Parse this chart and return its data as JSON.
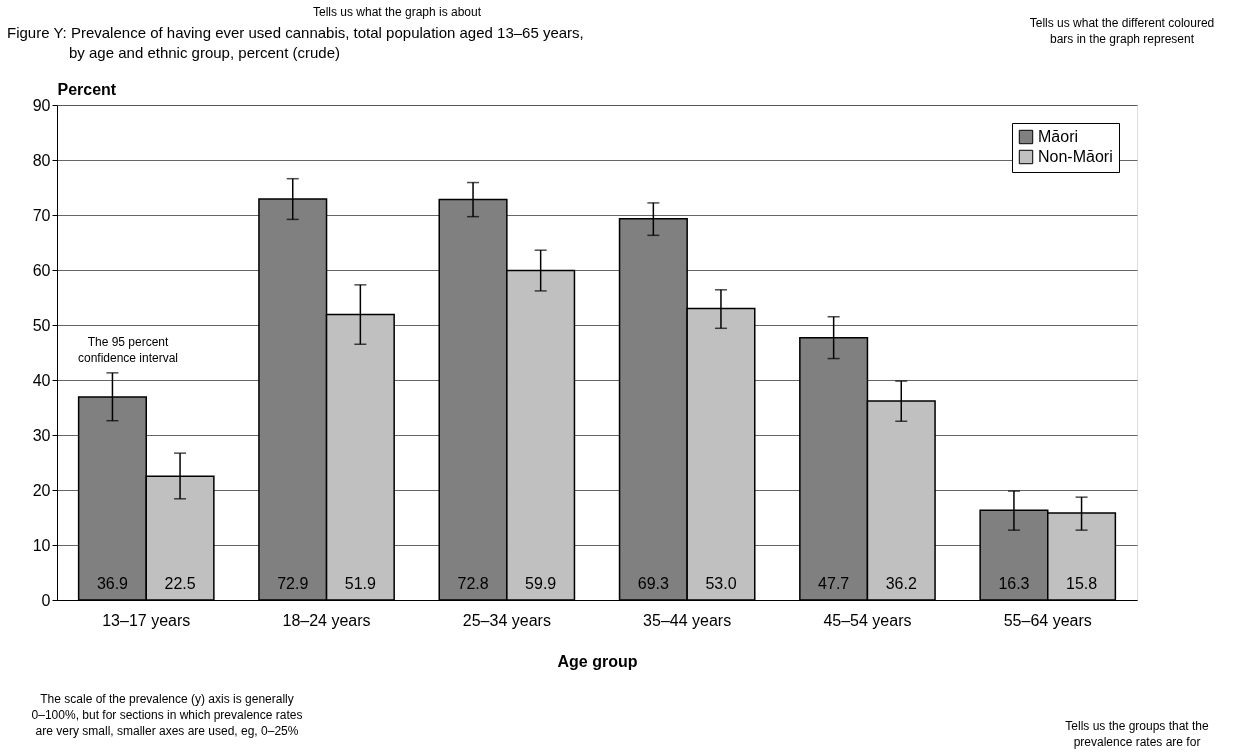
{
  "chart_data": {
    "type": "bar",
    "title": "Figure Y: Prevalence of having ever used cannabis, total population aged 13–65 years,",
    "subtitle": "by age and ethnic group, percent (crude)",
    "xlabel": "Age group",
    "ylabel": "Percent",
    "categories": [
      "13–17 years",
      "18–24 years",
      "25–34 years",
      "35–44 years",
      "45–54 years",
      "55–64 years"
    ],
    "series": [
      {
        "name": "Māori",
        "color": "#808080",
        "values": [
          36.9,
          72.9,
          72.8,
          69.3,
          47.7,
          16.3
        ],
        "value_labels": [
          "36.9",
          "72.9",
          "72.8",
          "69.3",
          "47.7",
          "16.3"
        ],
        "errors": [
          [
            32.6,
            41.3
          ],
          [
            69.2,
            76.6
          ],
          [
            69.7,
            75.9
          ],
          [
            66.3,
            72.2
          ],
          [
            43.9,
            51.5
          ],
          [
            12.7,
            19.8
          ]
        ]
      },
      {
        "name": "Non-Māori",
        "color": "#c0c0c0",
        "values": [
          22.5,
          51.9,
          59.9,
          53.0,
          36.2,
          15.8
        ],
        "value_labels": [
          "22.5",
          "51.9",
          "59.9",
          "53.0",
          "36.2",
          "15.8"
        ],
        "errors": [
          [
            18.4,
            26.7
          ],
          [
            46.5,
            57.3
          ],
          [
            56.2,
            63.6
          ],
          [
            49.4,
            56.4
          ],
          [
            32.5,
            39.8
          ],
          [
            12.7,
            18.7
          ]
        ]
      }
    ],
    "ylim": [
      0,
      90
    ],
    "yticks": [
      0,
      10,
      20,
      30,
      40,
      50,
      60,
      70,
      80,
      90
    ],
    "grid": "y",
    "legend": "top right",
    "annotations": [
      "Tells us what the graph is about",
      "Tells us what the different coloured\nbars in the graph represent",
      "The 95 percent\nconfidence interval",
      "The scale of the prevalence (y) axis is generally\n0–100%, but for sections in which prevalence rates\nare very small, smaller axes are used, eg, 0–25%",
      "Tells us the groups that the\nprevalence rates are for"
    ]
  }
}
